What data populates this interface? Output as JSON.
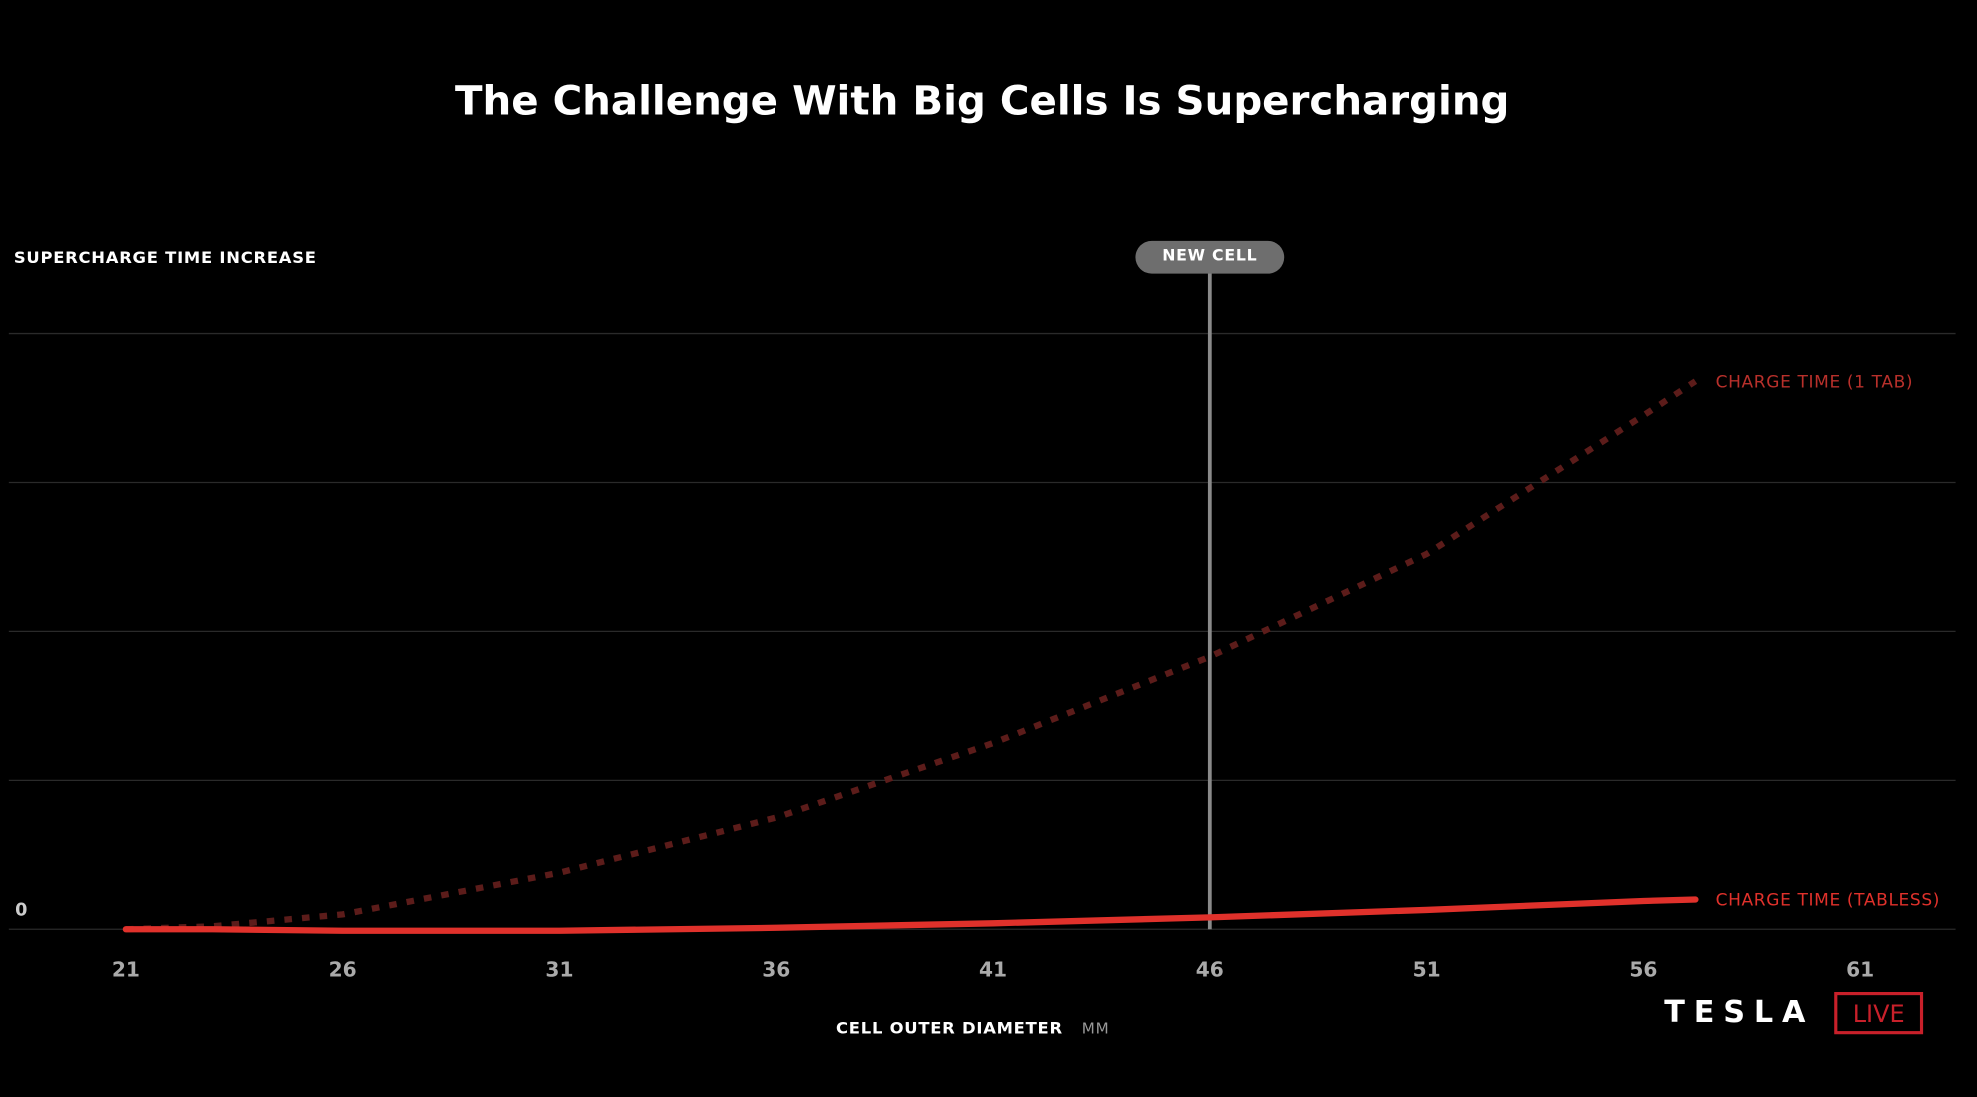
{
  "chart_data": {
    "type": "line",
    "title": "The Challenge With Big Cells Is Supercharging",
    "y_label": "SUPERCHARGE TIME INCREASE",
    "x_label": "CELL OUTER DIAMETER",
    "x_unit": "MM",
    "x": [
      21,
      23,
      26,
      31,
      36,
      41,
      46,
      51,
      56,
      57.2
    ],
    "series": [
      {
        "name": "CHARGE TIME (1 TAB)",
        "color": "#5c1c1a",
        "label_color": "#b8302b",
        "dashed": true,
        "values": [
          0,
          0.02,
          0.1,
          0.38,
          0.75,
          1.25,
          1.83,
          2.52,
          3.45,
          3.68
        ]
      },
      {
        "name": "CHARGE TIME (TABLESS)",
        "color": "#e0312b",
        "label_color": "#e0312b",
        "dashed": false,
        "values": [
          0,
          0,
          -0.01,
          -0.01,
          0.01,
          0.04,
          0.08,
          0.13,
          0.19,
          0.2
        ]
      }
    ],
    "xlim": [
      18.3,
      63.2
    ],
    "xticks": [
      21,
      26,
      31,
      36,
      41,
      46,
      51,
      56,
      61
    ],
    "ylim": [
      0,
      4.25
    ],
    "yticks": [
      0
    ],
    "ygrid": [
      0,
      1,
      2,
      3,
      4
    ],
    "grid": true,
    "annotations": [
      {
        "text": "NEW CELL",
        "x": 46
      }
    ]
  },
  "logo": {
    "brand": "TESLA",
    "badge": "LIVE"
  }
}
